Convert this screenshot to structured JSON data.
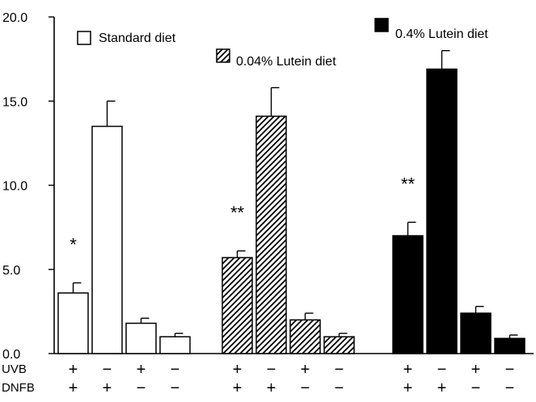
{
  "chart_data": {
    "type": "bar",
    "title": "",
    "xlabel": "",
    "ylabel": "",
    "ylim": [
      0,
      20
    ],
    "yticks": [
      "0.0",
      "5.0",
      "10.0",
      "15.0",
      "20.0"
    ],
    "grid": false,
    "legend_style": "inline labels above each group",
    "groups": [
      {
        "name": "Standard diet",
        "fill": "white",
        "values": [
          3.6,
          13.5,
          1.8,
          1.0
        ],
        "errors": [
          0.6,
          1.5,
          0.3,
          0.2
        ],
        "annotation": "*",
        "annotated_bar": 0
      },
      {
        "name": "0.04% Lutein diet",
        "fill": "hatched",
        "values": [
          5.7,
          14.1,
          2.0,
          1.0
        ],
        "errors": [
          0.4,
          1.7,
          0.4,
          0.2
        ],
        "annotation": "**",
        "annotated_bar": 0
      },
      {
        "name": "0.4% Lutein diet",
        "fill": "black",
        "values": [
          7.0,
          16.9,
          2.4,
          0.9
        ],
        "errors": [
          0.8,
          1.1,
          0.4,
          0.2
        ],
        "annotation": "**",
        "annotated_bar": 0
      }
    ],
    "treatment_rows": [
      {
        "label": "UVB",
        "signs": [
          "+",
          "−",
          "+",
          "−"
        ]
      },
      {
        "label": "DNFB",
        "signs": [
          "+",
          "+",
          "−",
          "−"
        ]
      }
    ]
  }
}
